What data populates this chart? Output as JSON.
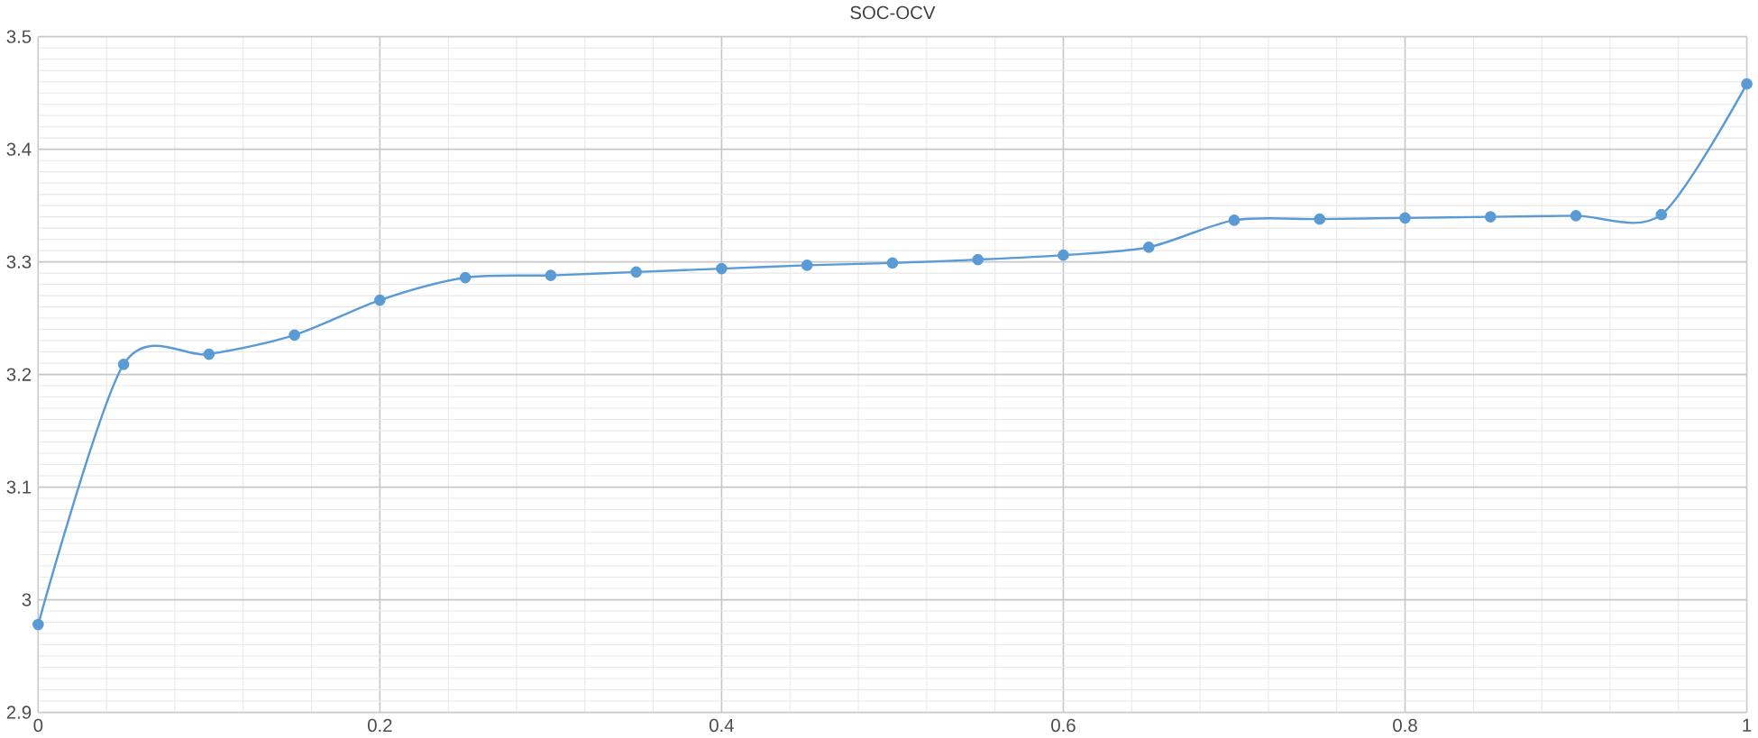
{
  "chart_data": {
    "type": "line",
    "title": "SOC-OCV",
    "x": [
      0,
      0.05,
      0.1,
      0.15,
      0.2,
      0.25,
      0.3,
      0.35,
      0.4,
      0.45,
      0.5,
      0.55,
      0.6,
      0.65,
      0.7,
      0.75,
      0.8,
      0.85,
      0.9,
      0.95,
      1
    ],
    "series": [
      {
        "color": "#5b9bd5",
        "values": [
          2.978,
          3.209,
          3.218,
          3.235,
          3.266,
          3.286,
          3.288,
          3.291,
          3.294,
          3.297,
          3.299,
          3.302,
          3.306,
          3.313,
          3.337,
          3.338,
          3.339,
          3.34,
          3.341,
          3.342,
          3.458
        ]
      }
    ],
    "xlim": [
      0,
      1
    ],
    "ylim": [
      2.9,
      3.5
    ],
    "xticks": [
      0,
      0.2,
      0.4,
      0.6,
      0.8,
      1
    ],
    "yticks": [
      2.9,
      3,
      3.1,
      3.2,
      3.3,
      3.4,
      3.5
    ],
    "grid": true,
    "marker": "circle",
    "line_style": "solid"
  }
}
